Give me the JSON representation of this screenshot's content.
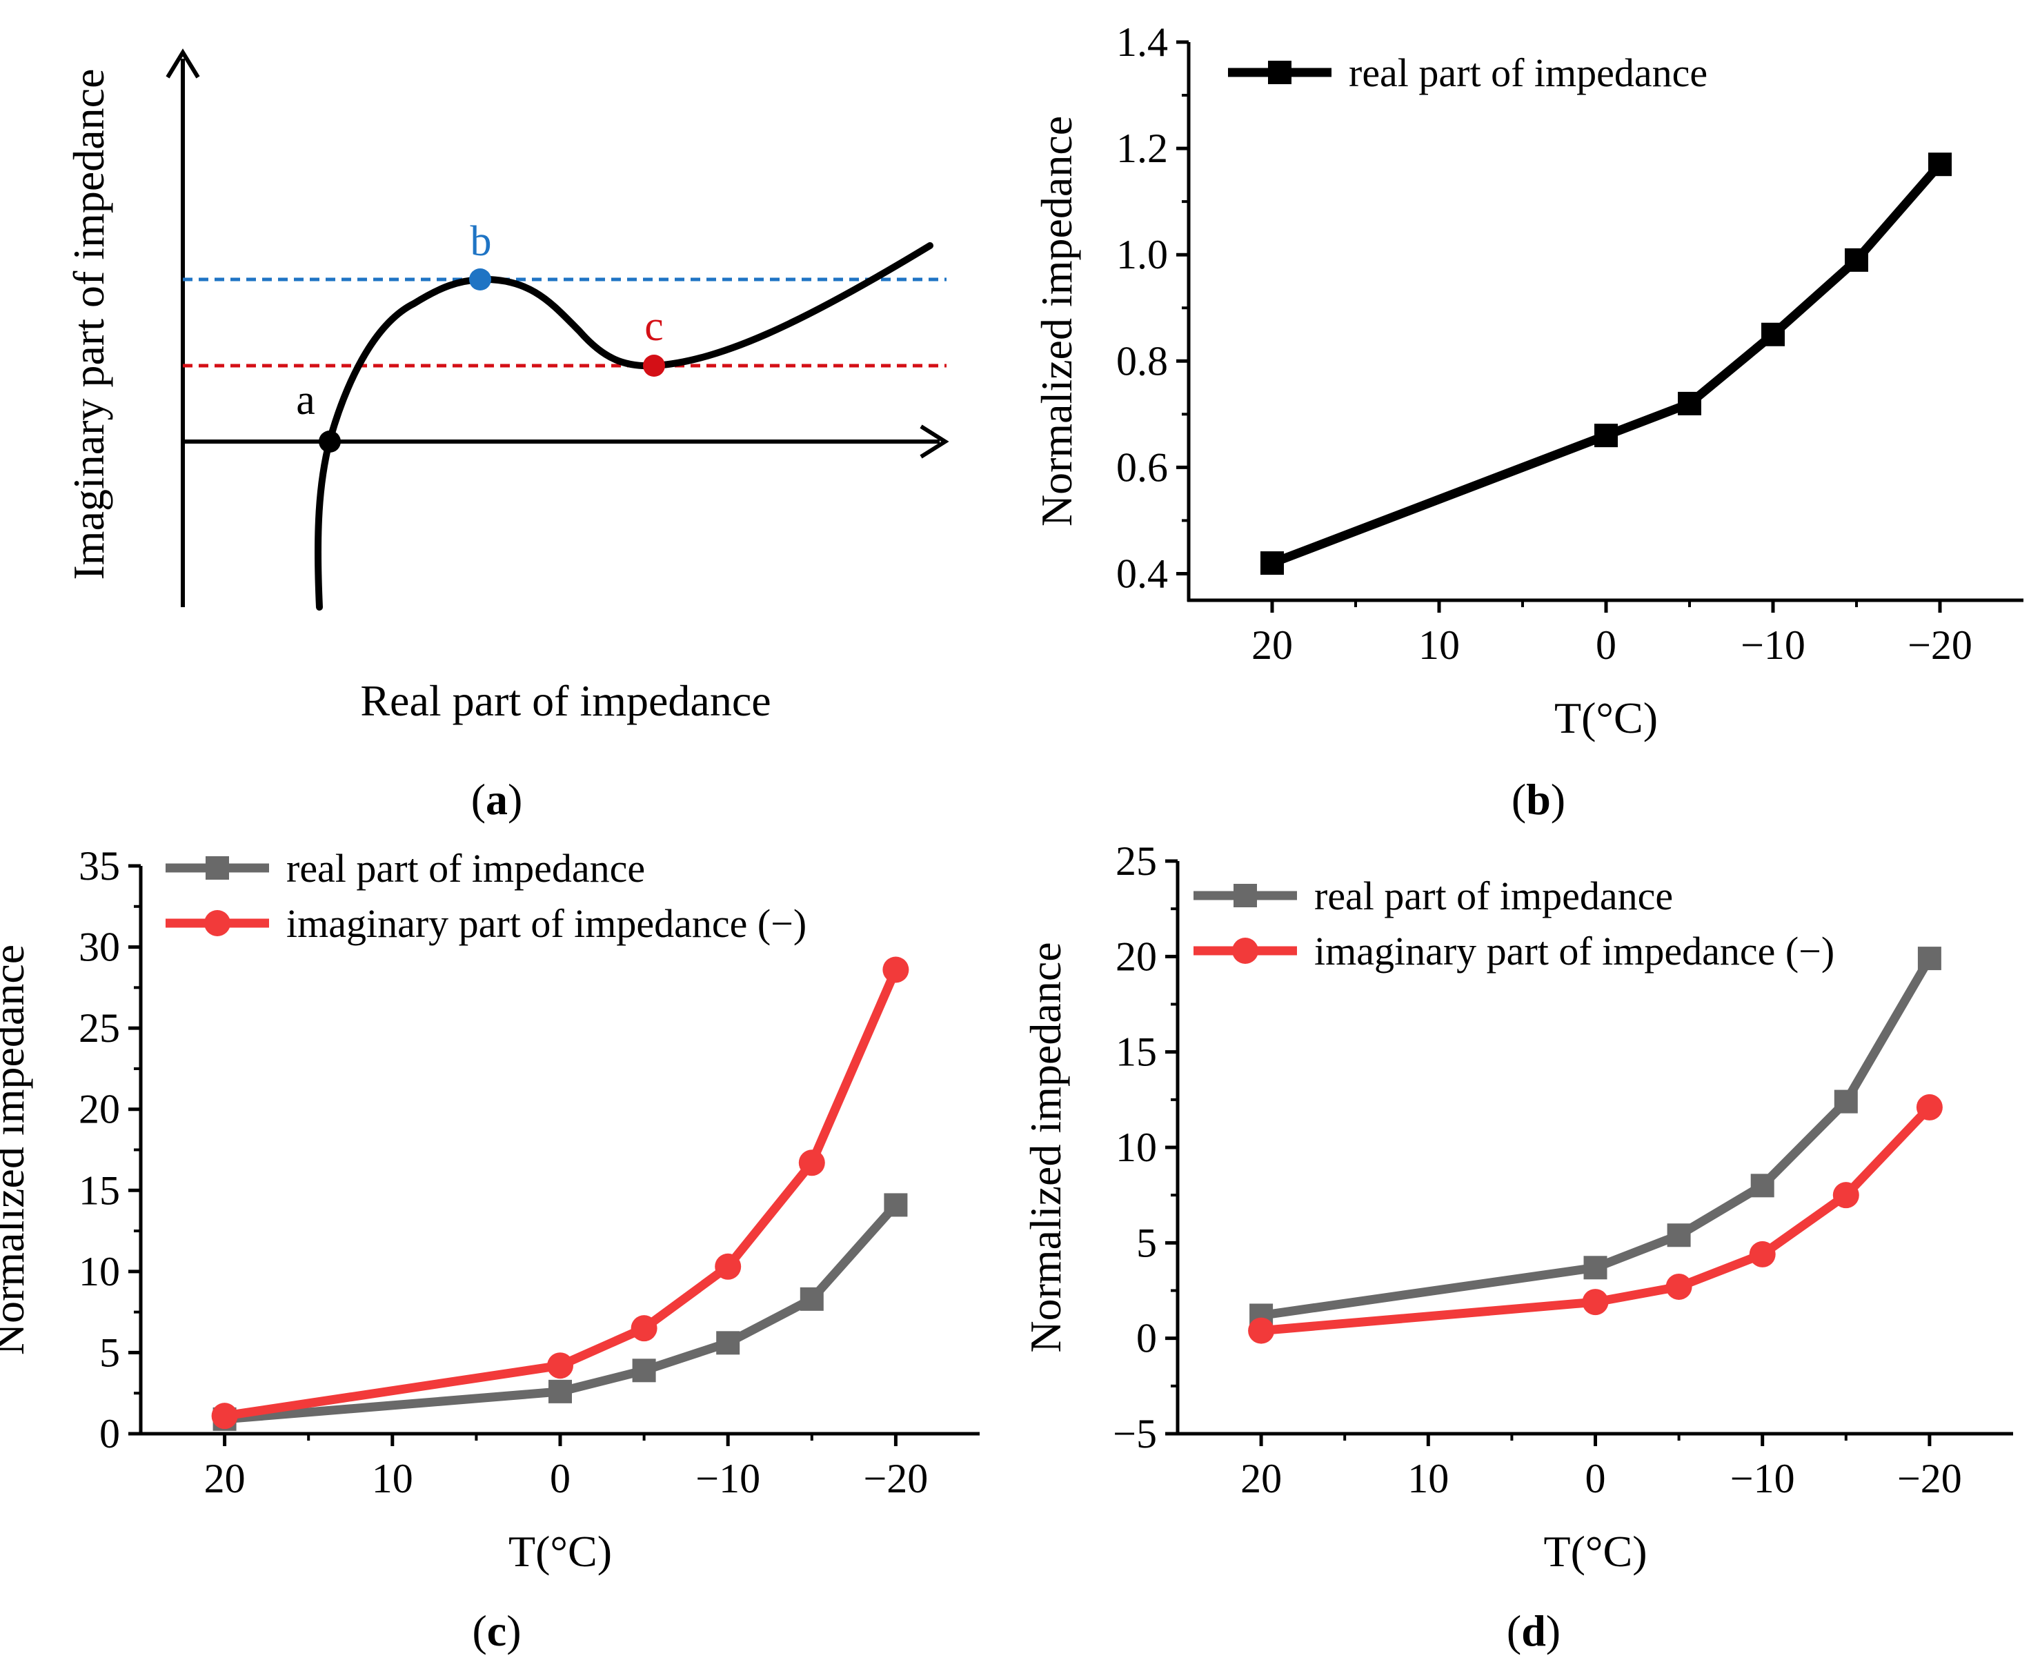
{
  "figure": {
    "panel_labels": [
      {
        "open": "(",
        "letter": "a",
        "close": ")"
      },
      {
        "open": "(",
        "letter": "b",
        "close": ")"
      },
      {
        "open": "(",
        "letter": "c",
        "close": ")"
      },
      {
        "open": "(",
        "letter": "d",
        "close": ")"
      }
    ]
  },
  "colors": {
    "black": "#000000",
    "gray": "#696969",
    "red": "#f23a3a",
    "blue": "#1f74c4",
    "dark_red": "#d40f16"
  },
  "chart_data": [
    {
      "panel": "a",
      "type": "line",
      "kind": "schematic",
      "xlabel": "Real part of impedance",
      "ylabel": "Imaginary part of impedance",
      "points": [
        {
          "name": "a",
          "label": "a",
          "color": "#000000"
        },
        {
          "name": "b",
          "label": "b",
          "color": "#1f74c4"
        },
        {
          "name": "c",
          "label": "c",
          "color": "#d40f16"
        }
      ],
      "reference_lines": [
        {
          "name": "b-level",
          "color": "#1f74c4",
          "style": "dashed"
        },
        {
          "name": "c-level",
          "color": "#d40f16",
          "style": "dashed"
        }
      ]
    },
    {
      "panel": "b",
      "type": "line",
      "xlabel": "T(°C)",
      "ylabel": "Normalized impedance",
      "xlim": [
        25,
        -25
      ],
      "ylim": [
        0.35,
        1.4
      ],
      "xticks": [
        20,
        10,
        0,
        -10,
        -20
      ],
      "xtick_labels": [
        "20",
        "10",
        "0",
        "−10",
        "−20"
      ],
      "yticks": [
        0.4,
        0.6,
        0.8,
        1.0,
        1.2,
        1.4
      ],
      "ytick_labels": [
        "0.4",
        "0.6",
        "0.8",
        "1.0",
        "1.2",
        "1.4"
      ],
      "x": [
        20,
        0,
        -5,
        -10,
        -15,
        -20
      ],
      "series": [
        {
          "name": "real part of impedance",
          "marker": "square",
          "color": "#000000",
          "values": [
            0.42,
            0.66,
            0.72,
            0.85,
            0.99,
            1.17
          ]
        }
      ],
      "legend": "top-left"
    },
    {
      "panel": "c",
      "type": "line",
      "xlabel": "T(°C)",
      "ylabel": "Normalized impedance",
      "xlim": [
        25,
        -25
      ],
      "ylim": [
        0,
        35
      ],
      "xticks": [
        20,
        10,
        0,
        -10,
        -20
      ],
      "xtick_labels": [
        "20",
        "10",
        "0",
        "−10",
        "−20"
      ],
      "yticks": [
        0,
        5,
        10,
        15,
        20,
        25,
        30,
        35
      ],
      "ytick_labels": [
        "0",
        "5",
        "10",
        "15",
        "20",
        "25",
        "30",
        "35"
      ],
      "x": [
        20,
        0,
        -5,
        -10,
        -15,
        -20
      ],
      "series": [
        {
          "name": "real part of impedance",
          "marker": "square",
          "color": "#696969",
          "values": [
            0.9,
            2.6,
            3.9,
            5.6,
            8.3,
            14.1
          ]
        },
        {
          "name": "imaginary part of impedance (−)",
          "marker": "circle",
          "color": "#f23a3a",
          "values": [
            1.1,
            4.2,
            6.5,
            10.3,
            16.7,
            28.6
          ]
        }
      ],
      "legend": "top-left"
    },
    {
      "panel": "d",
      "type": "line",
      "xlabel": "T(°C)",
      "ylabel": "Normalized impedance",
      "xlim": [
        25,
        -25
      ],
      "ylim": [
        -5,
        25
      ],
      "xticks": [
        20,
        10,
        0,
        -10,
        -20
      ],
      "xtick_labels": [
        "20",
        "10",
        "0",
        "−10",
        "−20"
      ],
      "yticks": [
        -5,
        0,
        5,
        10,
        15,
        20,
        25
      ],
      "ytick_labels": [
        "−5",
        "0",
        "5",
        "10",
        "15",
        "20",
        "25"
      ],
      "x": [
        20,
        0,
        -5,
        -10,
        -15,
        -20
      ],
      "series": [
        {
          "name": "real part of impedance",
          "marker": "square",
          "color": "#696969",
          "values": [
            1.2,
            3.7,
            5.4,
            8.0,
            12.4,
            19.9
          ]
        },
        {
          "name": "imaginary part of impedance (−)",
          "marker": "circle",
          "color": "#f23a3a",
          "values": [
            0.4,
            1.9,
            2.7,
            4.4,
            7.5,
            12.1
          ]
        }
      ],
      "legend": "top-left"
    }
  ]
}
